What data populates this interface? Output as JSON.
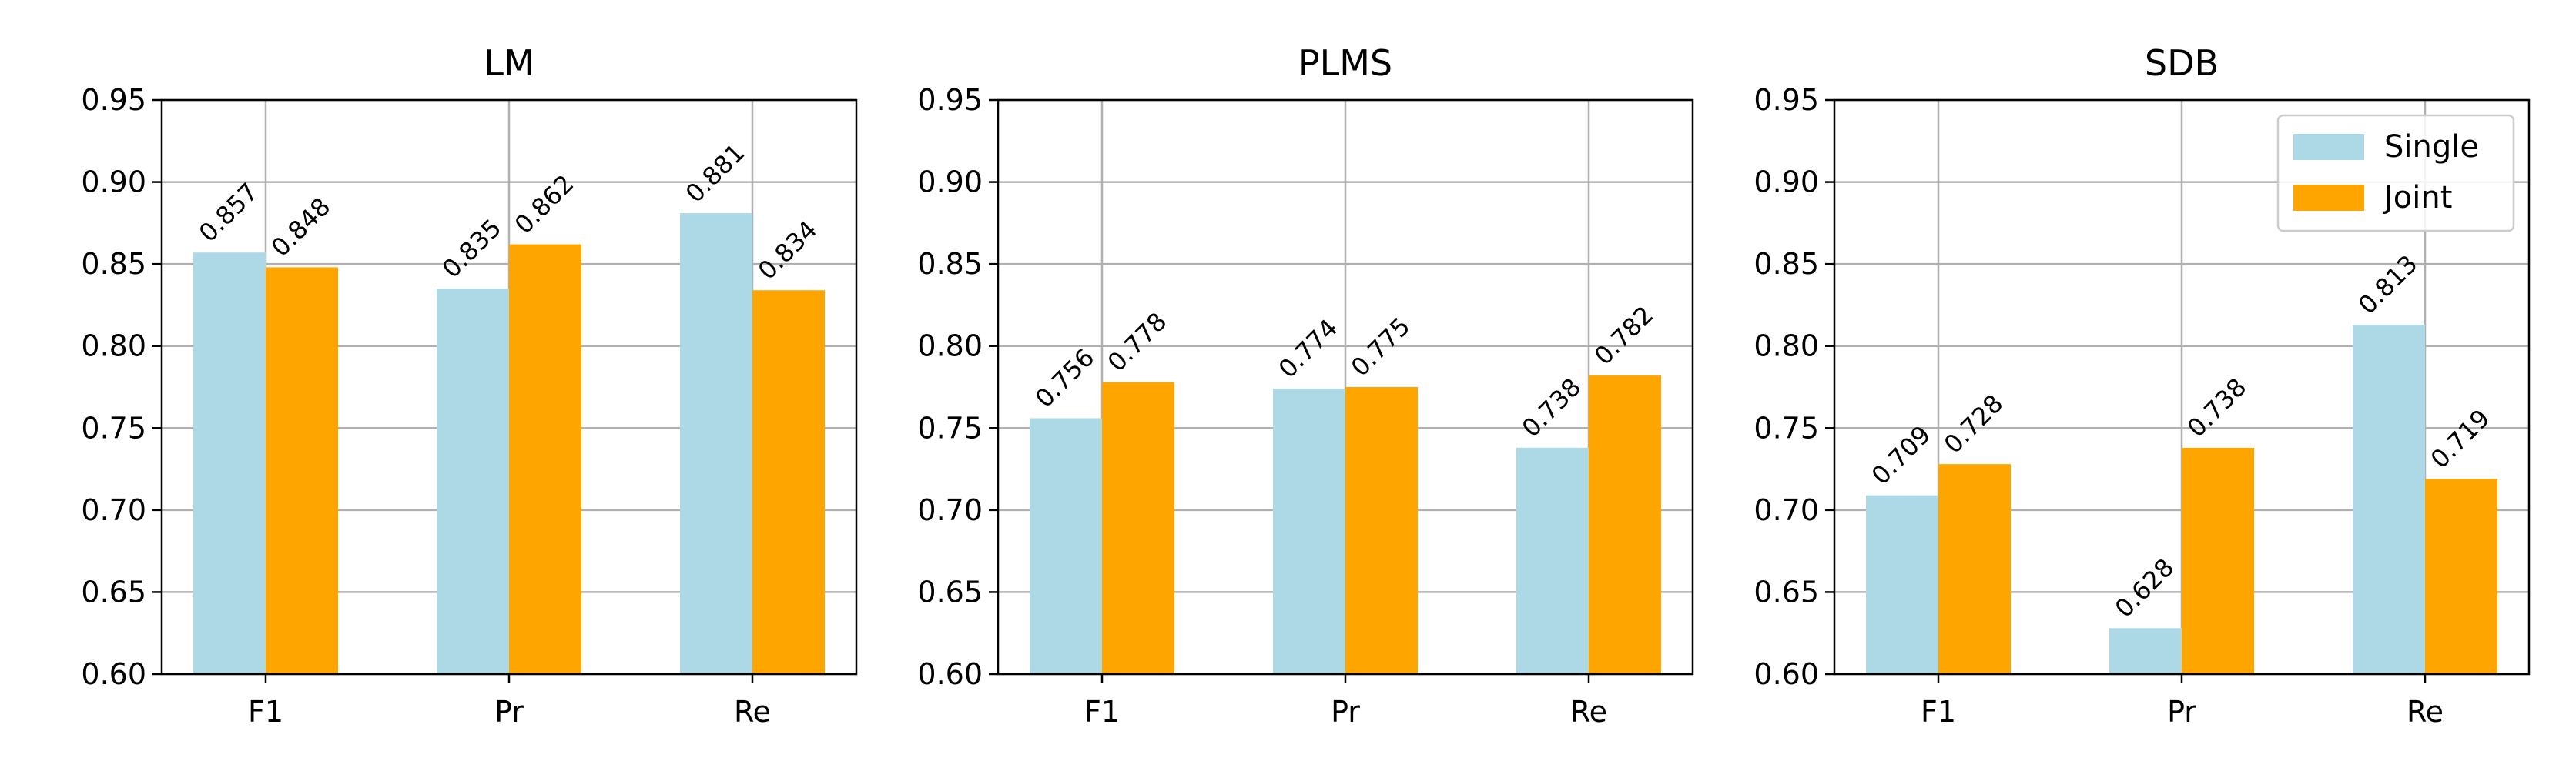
{
  "chart_data": [
    {
      "type": "bar",
      "title": "LM",
      "categories": [
        "F1",
        "Pr",
        "Re"
      ],
      "series": [
        {
          "name": "Single",
          "values": [
            0.857,
            0.835,
            0.881
          ]
        },
        {
          "name": "Joint",
          "values": [
            0.848,
            0.862,
            0.834
          ]
        }
      ],
      "data_labels": [
        [
          "0.857",
          "0.835",
          "0.881"
        ],
        [
          "0.848",
          "0.862",
          "0.834"
        ]
      ],
      "xlabel": "",
      "ylabel": "",
      "ylim": [
        0.6,
        0.95
      ],
      "yticks": [
        0.6,
        0.65,
        0.7,
        0.75,
        0.8,
        0.85,
        0.9,
        0.95
      ],
      "ytick_labels": [
        "0.60",
        "0.65",
        "0.70",
        "0.75",
        "0.80",
        "0.85",
        "0.90",
        "0.95"
      ],
      "grid": true,
      "legend": false
    },
    {
      "type": "bar",
      "title": "PLMS",
      "categories": [
        "F1",
        "Pr",
        "Re"
      ],
      "series": [
        {
          "name": "Single",
          "values": [
            0.756,
            0.774,
            0.738
          ]
        },
        {
          "name": "Joint",
          "values": [
            0.778,
            0.775,
            0.782
          ]
        }
      ],
      "data_labels": [
        [
          "0.756",
          "0.774",
          "0.738"
        ],
        [
          "0.778",
          "0.775",
          "0.782"
        ]
      ],
      "xlabel": "",
      "ylabel": "",
      "ylim": [
        0.6,
        0.95
      ],
      "yticks": [
        0.6,
        0.65,
        0.7,
        0.75,
        0.8,
        0.85,
        0.9,
        0.95
      ],
      "ytick_labels": [
        "0.60",
        "0.65",
        "0.70",
        "0.75",
        "0.80",
        "0.85",
        "0.90",
        "0.95"
      ],
      "grid": true,
      "legend": false
    },
    {
      "type": "bar",
      "title": "SDB",
      "categories": [
        "F1",
        "Pr",
        "Re"
      ],
      "series": [
        {
          "name": "Single",
          "values": [
            0.709,
            0.628,
            0.813
          ]
        },
        {
          "name": "Joint",
          "values": [
            0.728,
            0.738,
            0.719
          ]
        }
      ],
      "data_labels": [
        [
          "0.709",
          "0.628",
          "0.813"
        ],
        [
          "0.728",
          "0.738",
          "0.719"
        ]
      ],
      "xlabel": "",
      "ylabel": "",
      "ylim": [
        0.6,
        0.95
      ],
      "yticks": [
        0.6,
        0.65,
        0.7,
        0.75,
        0.8,
        0.85,
        0.9,
        0.95
      ],
      "ytick_labels": [
        "0.60",
        "0.65",
        "0.70",
        "0.75",
        "0.80",
        "0.85",
        "0.90",
        "0.95"
      ],
      "grid": true,
      "legend": true,
      "legend_position": "top-right"
    }
  ],
  "colors": {
    "Single": "#add8e6",
    "Joint": "#ffa500"
  }
}
